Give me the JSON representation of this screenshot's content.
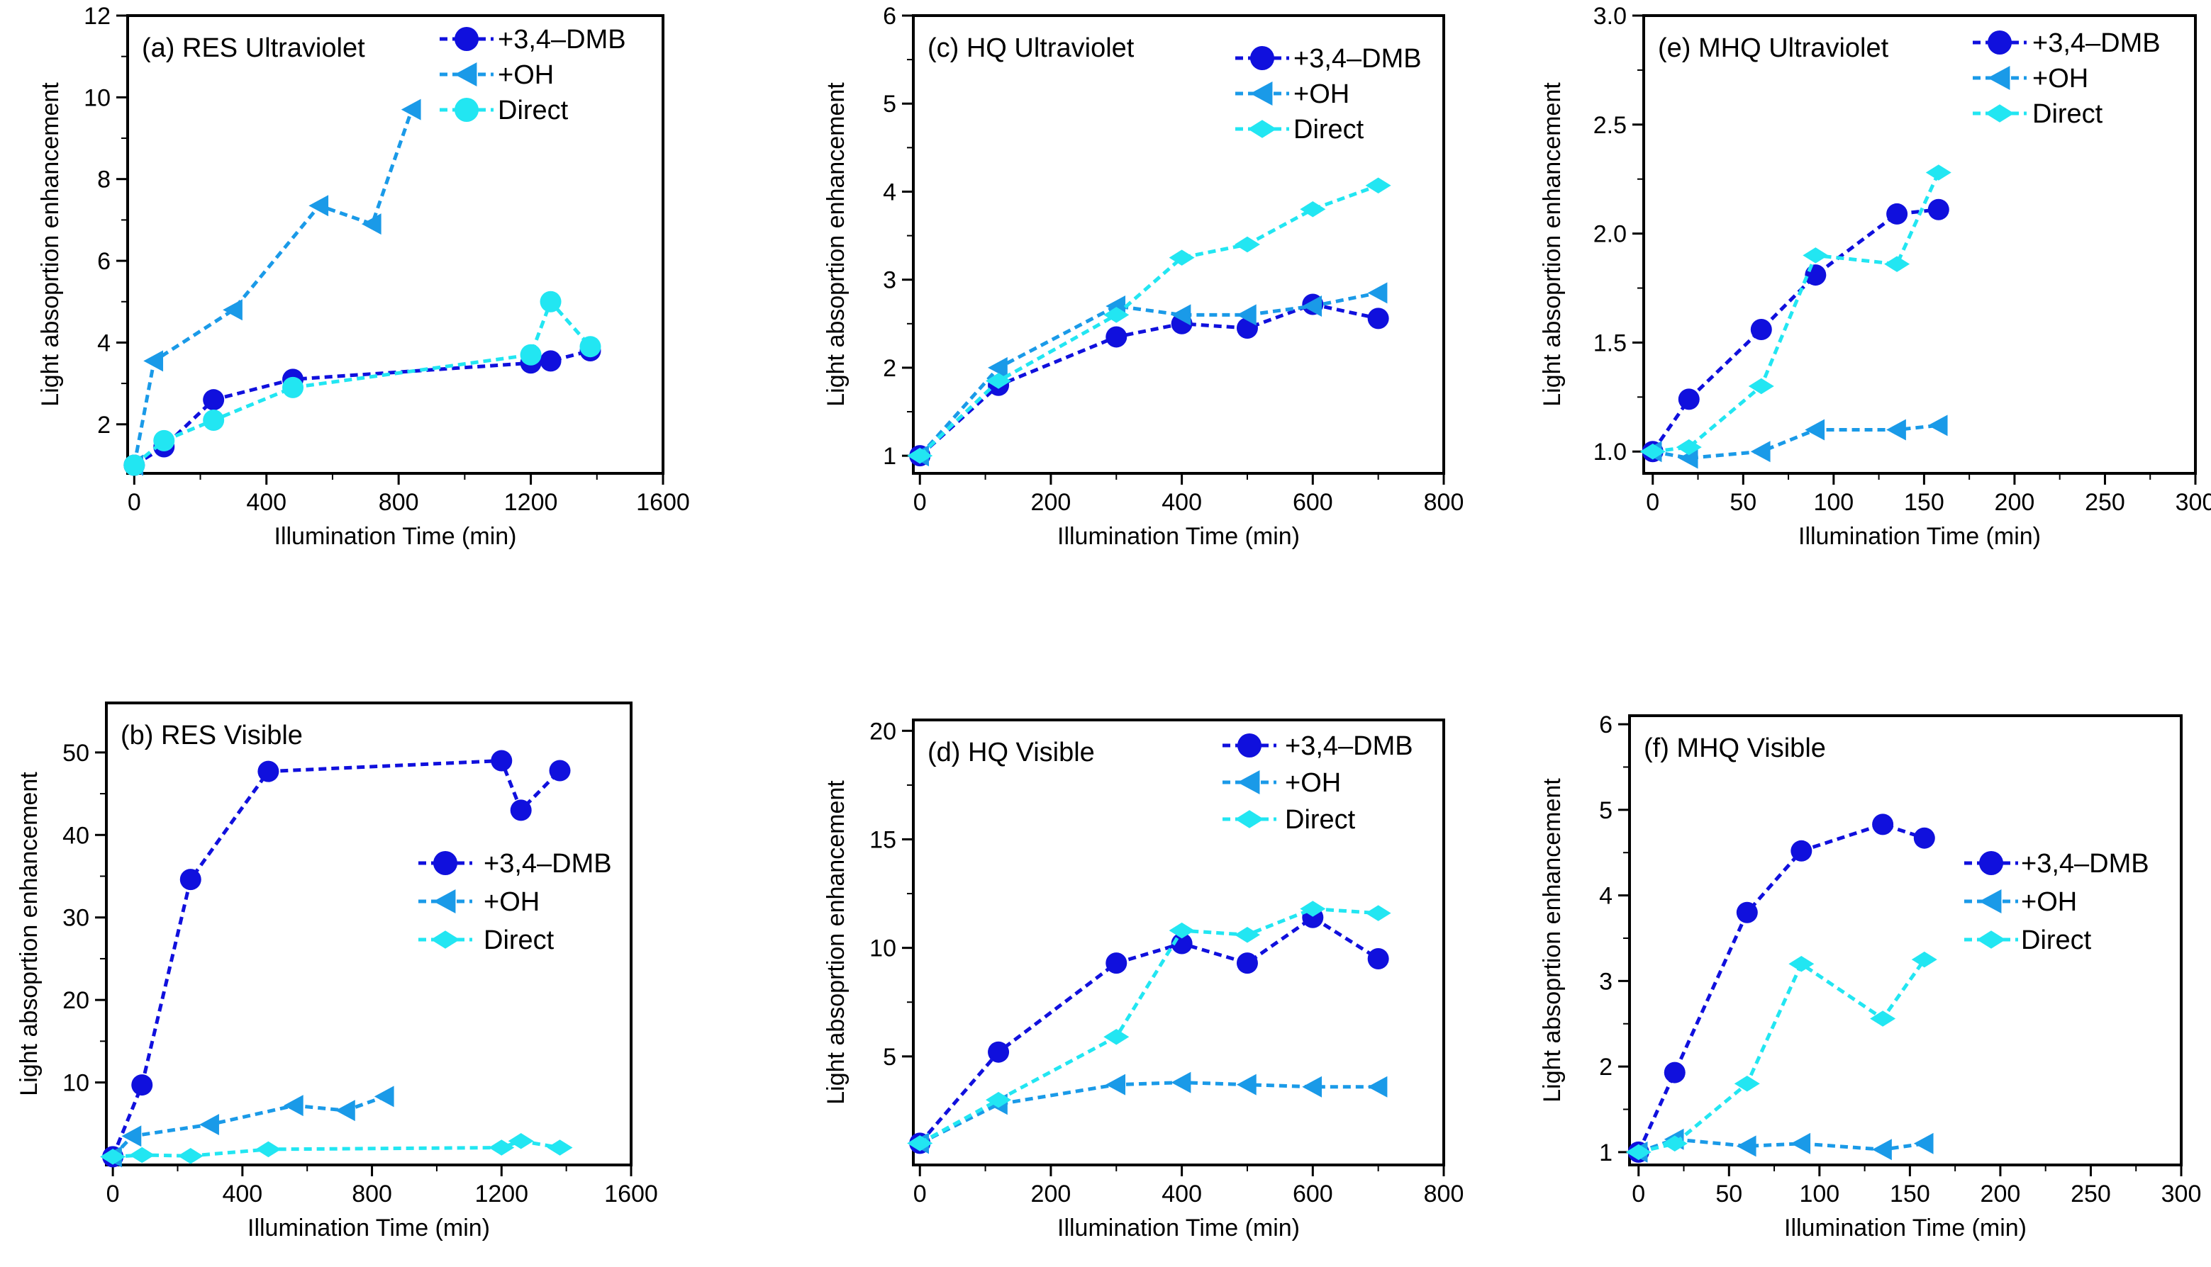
{
  "colors": {
    "dmb": "#1010dd",
    "oh": "#1a9ae8",
    "direct": "#22e6f2"
  },
  "chart_data": [
    {
      "id": "a",
      "type": "line",
      "title": "(a) RES Ultraviolet",
      "xlabel": "Illumination Time (min)",
      "ylabel": "Light absoprtion enhancement",
      "xlim": [
        -20,
        1600
      ],
      "ylim": [
        0.8,
        12
      ],
      "xticks": [
        0,
        400,
        800,
        1200,
        1600
      ],
      "yticks": [
        2,
        4,
        6,
        8,
        10,
        12
      ],
      "legend_position": "top-right",
      "series": [
        {
          "name": "+3,4–DMB",
          "key": "dmb",
          "marker": "circle",
          "x": [
            0,
            90,
            240,
            480,
            1200,
            1260,
            1380
          ],
          "y": [
            1.0,
            1.45,
            2.6,
            3.1,
            3.5,
            3.55,
            3.8
          ]
        },
        {
          "name": "+OH",
          "key": "oh",
          "marker": "triangle",
          "x": [
            0,
            60,
            300,
            560,
            720,
            840
          ],
          "y": [
            1.0,
            3.55,
            4.8,
            7.35,
            6.9,
            9.7
          ]
        },
        {
          "name": "Direct",
          "key": "direct",
          "marker": "circle",
          "x": [
            0,
            90,
            240,
            480,
            1200,
            1260,
            1380
          ],
          "y": [
            1.0,
            1.6,
            2.1,
            2.9,
            3.7,
            5.0,
            3.9
          ]
        }
      ]
    },
    {
      "id": "b",
      "type": "line",
      "title": "(b) RES Visible",
      "xlabel": "Illumination Time (min)",
      "ylabel": "Light absoprtion enhancement",
      "xlim": [
        -20,
        1600
      ],
      "ylim": [
        0,
        56
      ],
      "xticks": [
        0,
        400,
        800,
        1200,
        1600
      ],
      "yticks": [
        10,
        20,
        30,
        40,
        50
      ],
      "legend_position": "center-right",
      "series": [
        {
          "name": "+3,4–DMB",
          "key": "dmb",
          "marker": "circle",
          "x": [
            0,
            90,
            240,
            480,
            1200,
            1260,
            1380
          ],
          "y": [
            1.0,
            9.7,
            34.6,
            47.7,
            49.0,
            43.0,
            47.8
          ]
        },
        {
          "name": "+OH",
          "key": "oh",
          "marker": "triangle",
          "x": [
            0,
            60,
            300,
            560,
            720,
            840
          ],
          "y": [
            1.0,
            3.5,
            4.9,
            7.2,
            6.6,
            8.3
          ]
        },
        {
          "name": "Direct",
          "key": "direct",
          "marker": "diamond",
          "x": [
            0,
            90,
            240,
            480,
            1200,
            1260,
            1380
          ],
          "y": [
            1.0,
            1.2,
            1.1,
            1.9,
            2.1,
            2.9,
            2.1
          ]
        }
      ]
    },
    {
      "id": "c",
      "type": "line",
      "title": "(c) HQ Ultraviolet",
      "xlabel": "Illumination Time (min)",
      "ylabel": "Light absoprtion enhancement",
      "xlim": [
        -10,
        800
      ],
      "ylim": [
        0.8,
        6
      ],
      "xticks": [
        0,
        200,
        400,
        600,
        800
      ],
      "yticks": [
        1,
        2,
        3,
        4,
        5,
        6
      ],
      "legend_position": "top-right",
      "series": [
        {
          "name": "+3,4–DMB",
          "key": "dmb",
          "marker": "circle",
          "x": [
            0,
            120,
            300,
            400,
            500,
            600,
            700
          ],
          "y": [
            1.0,
            1.8,
            2.35,
            2.5,
            2.45,
            2.72,
            2.56
          ]
        },
        {
          "name": "+OH",
          "key": "oh",
          "marker": "triangle",
          "x": [
            0,
            120,
            300,
            400,
            500,
            600,
            700
          ],
          "y": [
            1.0,
            2.0,
            2.7,
            2.6,
            2.6,
            2.7,
            2.85
          ]
        },
        {
          "name": "Direct",
          "key": "direct",
          "marker": "diamond",
          "x": [
            0,
            120,
            300,
            400,
            500,
            600,
            700
          ],
          "y": [
            1.0,
            1.85,
            2.6,
            3.25,
            3.4,
            3.8,
            4.07
          ]
        }
      ]
    },
    {
      "id": "d",
      "type": "line",
      "title": "(d) HQ Visible",
      "xlabel": "Illumination Time (min)",
      "ylabel": "Light absoprtion enhancement",
      "xlim": [
        -10,
        800
      ],
      "ylim": [
        0,
        20.5
      ],
      "xticks": [
        0,
        200,
        400,
        600,
        800
      ],
      "yticks": [
        5,
        10,
        15,
        20
      ],
      "legend_position": "top-right",
      "series": [
        {
          "name": "+3,4–DMB",
          "key": "dmb",
          "marker": "circle",
          "x": [
            0,
            120,
            300,
            400,
            500,
            600,
            700
          ],
          "y": [
            1.0,
            5.2,
            9.3,
            10.2,
            9.3,
            11.4,
            9.5
          ]
        },
        {
          "name": "+OH",
          "key": "oh",
          "marker": "triangle",
          "x": [
            0,
            120,
            300,
            400,
            500,
            600,
            700
          ],
          "y": [
            1.0,
            2.8,
            3.7,
            3.8,
            3.7,
            3.6,
            3.6
          ]
        },
        {
          "name": "Direct",
          "key": "direct",
          "marker": "diamond",
          "x": [
            0,
            120,
            300,
            400,
            500,
            600,
            700
          ],
          "y": [
            1.0,
            3.0,
            5.9,
            10.8,
            10.6,
            11.8,
            11.6
          ]
        }
      ]
    },
    {
      "id": "e",
      "type": "line",
      "title": "(e) MHQ Ultraviolet",
      "xlabel": "Illumination Time (min)",
      "ylabel": "Light absoprtion enhancement",
      "xlim": [
        -5,
        300
      ],
      "ylim": [
        0.9,
        3.0
      ],
      "xticks": [
        0,
        50,
        100,
        150,
        200,
        250,
        300
      ],
      "yticks": [
        1.0,
        1.5,
        2.0,
        2.5,
        3.0
      ],
      "legend_position": "top-right",
      "series": [
        {
          "name": "+3,4–DMB",
          "key": "dmb",
          "marker": "circle",
          "x": [
            0,
            20,
            60,
            90,
            135,
            158
          ],
          "y": [
            1.0,
            1.24,
            1.56,
            1.81,
            2.09,
            2.11
          ]
        },
        {
          "name": "+OH",
          "key": "oh",
          "marker": "triangle",
          "x": [
            0,
            20,
            60,
            90,
            135,
            158
          ],
          "y": [
            1.0,
            0.97,
            1.0,
            1.1,
            1.1,
            1.12
          ]
        },
        {
          "name": "Direct",
          "key": "direct",
          "marker": "diamond",
          "x": [
            0,
            20,
            60,
            90,
            135,
            158
          ],
          "y": [
            1.0,
            1.02,
            1.3,
            1.9,
            1.86,
            2.28
          ]
        }
      ]
    },
    {
      "id": "f",
      "type": "line",
      "title": "(f) MHQ Visible",
      "xlabel": "Illumination Time (min)",
      "ylabel": "Light absoprtion enhancement",
      "xlim": [
        -5,
        300
      ],
      "ylim": [
        0.85,
        6.1
      ],
      "xticks": [
        0,
        50,
        100,
        150,
        200,
        250,
        300
      ],
      "yticks": [
        1,
        2,
        3,
        4,
        5,
        6
      ],
      "legend_position": "center-right",
      "series": [
        {
          "name": "+3,4–DMB",
          "key": "dmb",
          "marker": "circle",
          "x": [
            0,
            20,
            60,
            90,
            135,
            158
          ],
          "y": [
            1.0,
            1.93,
            3.8,
            4.52,
            4.83,
            4.67
          ]
        },
        {
          "name": "+OH",
          "key": "oh",
          "marker": "triangle",
          "x": [
            0,
            20,
            60,
            90,
            135,
            158
          ],
          "y": [
            1.0,
            1.15,
            1.07,
            1.1,
            1.03,
            1.1
          ]
        },
        {
          "name": "Direct",
          "key": "direct",
          "marker": "diamond",
          "x": [
            0,
            20,
            60,
            90,
            135,
            158
          ],
          "y": [
            1.0,
            1.1,
            1.8,
            3.2,
            2.56,
            3.25
          ]
        }
      ]
    }
  ]
}
